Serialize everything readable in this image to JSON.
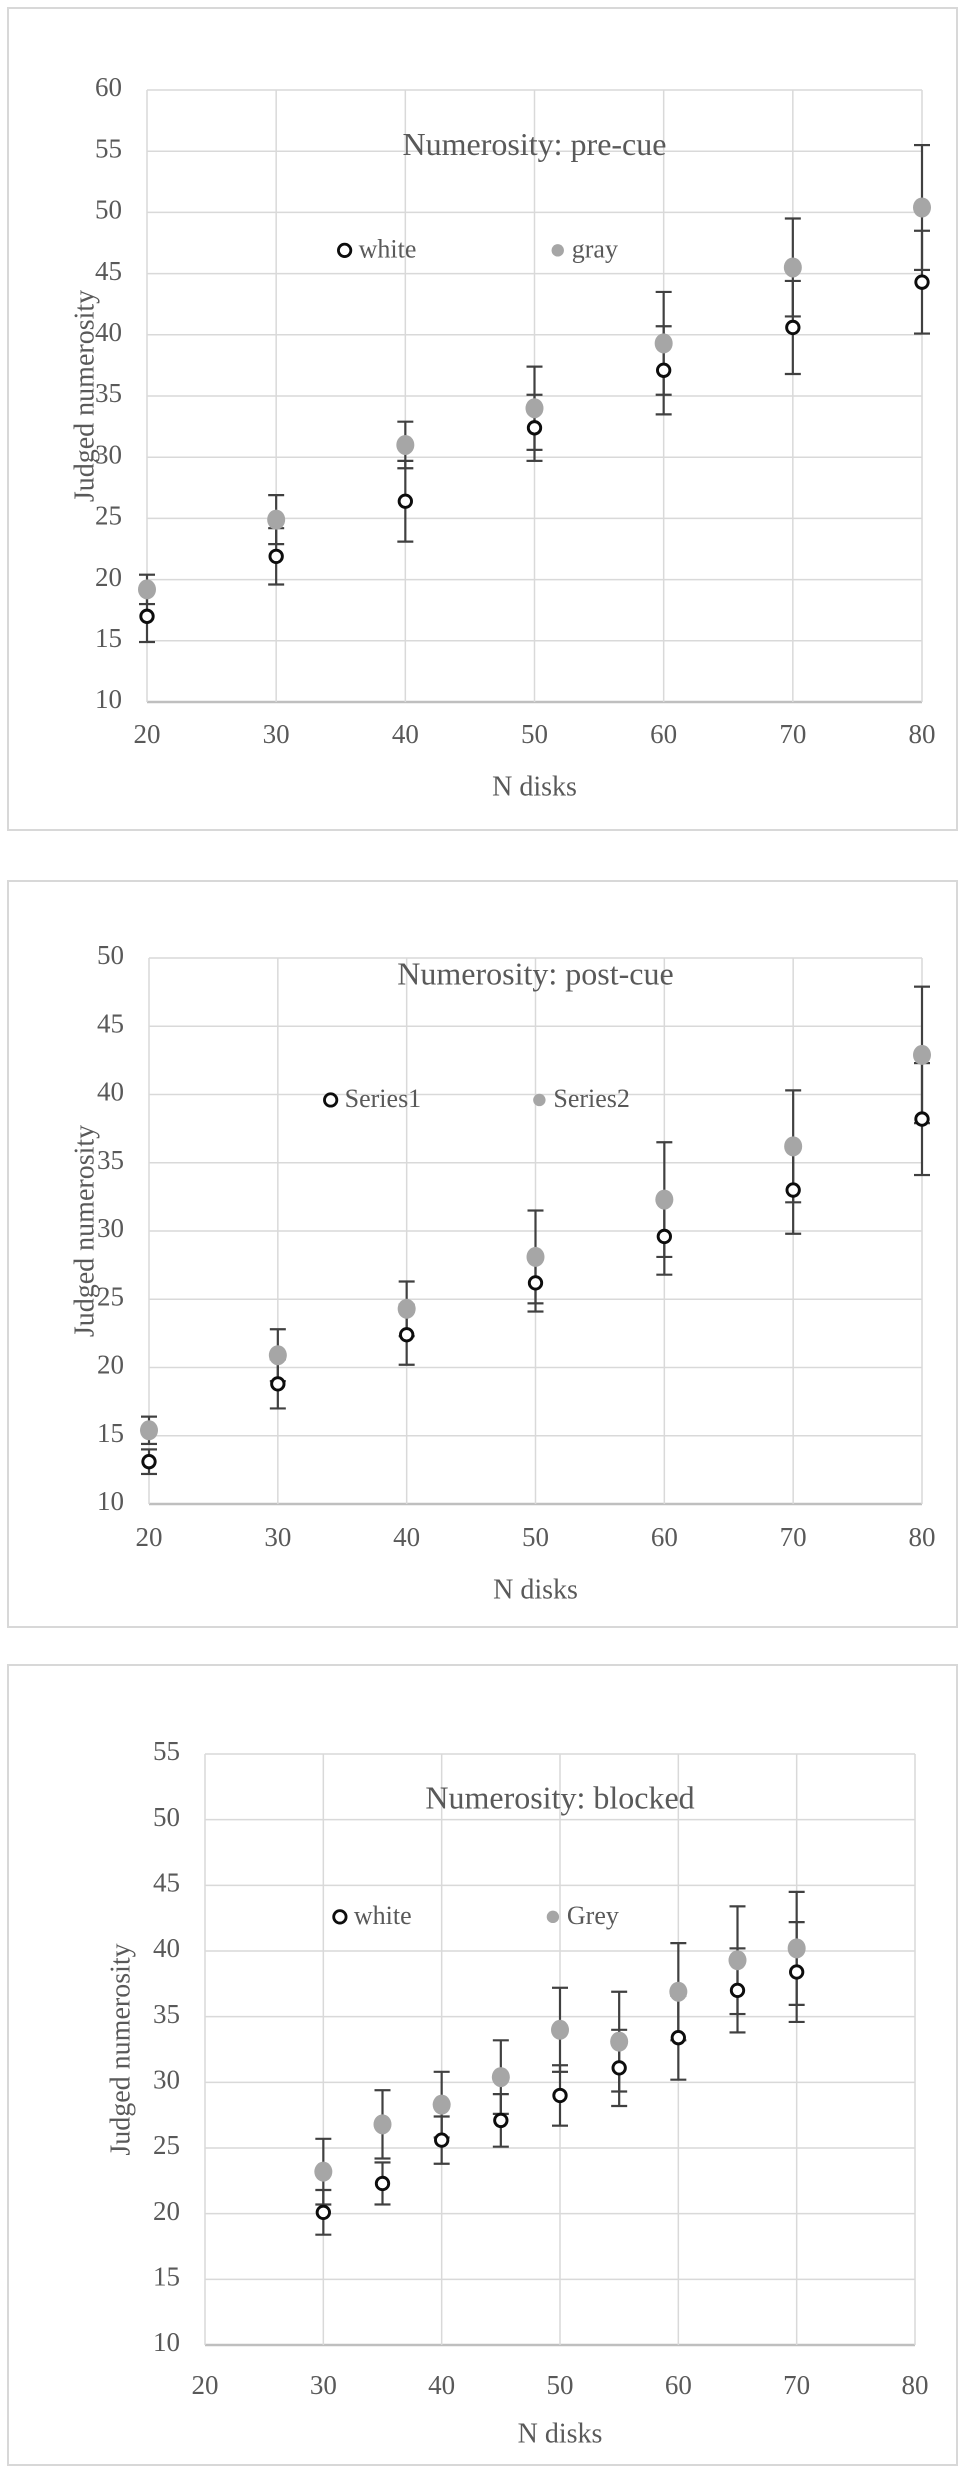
{
  "page": {
    "background": "#ffffff",
    "description_labels": {
      "y_axis": "Judged numerosity",
      "x_axis": "N disks"
    }
  },
  "styles": {
    "text_color": "#595959",
    "title_color": "#595959",
    "grid_color": "#d9d9d9",
    "axis_line_color": "#bfbfbf",
    "panel_border_color": "#d8d8d8",
    "error_bar_color": "#404040",
    "gray_marker_color": "#a6a6a6",
    "white_marker_fill": "#ffffff",
    "white_marker_stroke": "#0d0d0d"
  },
  "chart_data": [
    {
      "type": "scatter",
      "title": "Numerosity: pre-cue",
      "xlabel": "N disks",
      "ylabel": "Judged numerosity",
      "x": [
        20,
        30,
        40,
        50,
        60,
        70,
        80
      ],
      "xticks": [
        20,
        30,
        40,
        50,
        60,
        70,
        80
      ],
      "yticks": [
        10,
        15,
        20,
        25,
        30,
        35,
        40,
        45,
        50,
        55,
        60
      ],
      "xlim": [
        20,
        80
      ],
      "ylim": [
        10,
        60
      ],
      "grid": true,
      "legend_position": "inside-top",
      "series": [
        {
          "name": "white",
          "marker": "open-circle",
          "values": [
            17.0,
            21.9,
            26.4,
            32.4,
            37.1,
            40.6,
            44.3
          ],
          "error": [
            2.1,
            2.3,
            3.3,
            2.7,
            3.6,
            3.8,
            4.2
          ]
        },
        {
          "name": "gray",
          "marker": "filled-circle",
          "values": [
            19.2,
            24.9,
            31.0,
            34.0,
            39.3,
            45.5,
            50.4
          ],
          "error": [
            1.2,
            2.0,
            1.9,
            3.4,
            4.2,
            4.0,
            5.1
          ]
        }
      ]
    },
    {
      "type": "scatter",
      "title": "Numerosity: post-cue",
      "xlabel": "N disks",
      "ylabel": "Judged numerosity",
      "x": [
        20,
        30,
        40,
        50,
        60,
        70,
        80
      ],
      "xticks": [
        20,
        30,
        40,
        50,
        60,
        70,
        80
      ],
      "yticks": [
        10,
        15,
        20,
        25,
        30,
        35,
        40,
        45,
        50
      ],
      "xlim": [
        20,
        80
      ],
      "ylim": [
        10,
        50
      ],
      "grid": true,
      "legend_position": "inside-top",
      "series": [
        {
          "name": "Series1",
          "marker": "open-circle",
          "values": [
            13.1,
            18.8,
            22.4,
            26.2,
            29.6,
            33.0,
            38.2
          ],
          "error": [
            0.9,
            1.8,
            2.2,
            2.1,
            2.8,
            3.2,
            4.1
          ]
        },
        {
          "name": "Series2",
          "marker": "filled-circle",
          "values": [
            15.4,
            20.9,
            24.3,
            28.1,
            32.3,
            36.2,
            42.9
          ],
          "error": [
            1.0,
            1.9,
            2.0,
            3.4,
            4.2,
            4.1,
            5.0
          ]
        }
      ]
    },
    {
      "type": "scatter",
      "title": "Numerosity: blocked",
      "xlabel": "N disks",
      "ylabel": "Judged numerosity",
      "x": [
        30,
        35,
        40,
        45,
        50,
        55,
        60,
        65,
        70
      ],
      "xticks": [
        20,
        30,
        40,
        50,
        60,
        70,
        80
      ],
      "yticks": [
        10,
        15,
        20,
        25,
        30,
        35,
        40,
        45,
        50,
        55
      ],
      "xlim": [
        20,
        80
      ],
      "ylim": [
        10,
        55
      ],
      "grid": true,
      "legend_position": "inside-top",
      "series": [
        {
          "name": "white",
          "marker": "open-circle",
          "values": [
            20.1,
            22.3,
            25.6,
            27.1,
            29.0,
            31.1,
            33.4,
            37.0,
            38.4
          ],
          "error": [
            1.7,
            1.6,
            1.8,
            2.0,
            2.3,
            2.9,
            3.2,
            3.2,
            3.8
          ]
        },
        {
          "name": "Grey",
          "marker": "filled-circle",
          "values": [
            23.2,
            26.8,
            28.3,
            30.4,
            34.0,
            33.1,
            36.9,
            39.3,
            40.2
          ],
          "error": [
            2.5,
            2.6,
            2.5,
            2.8,
            3.2,
            3.8,
            3.7,
            4.1,
            4.3
          ]
        }
      ]
    }
  ]
}
